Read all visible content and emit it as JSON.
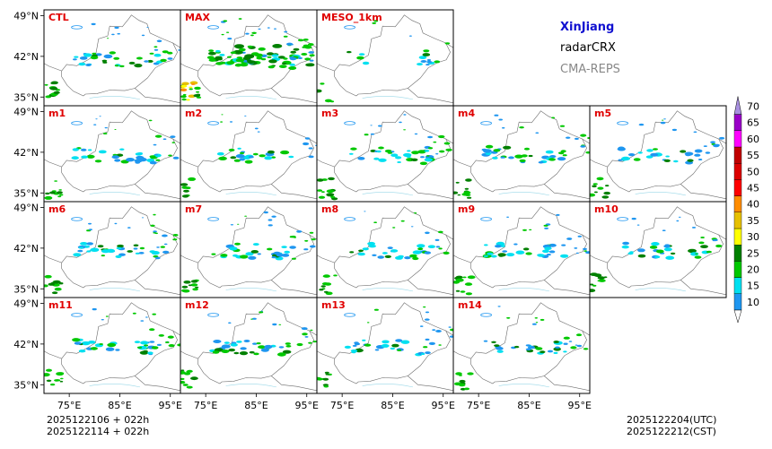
{
  "chart_data": {
    "type": "heatmap",
    "title": "XinJiang",
    "product": "radarCRX",
    "system": "CMA-REPS",
    "panels": [
      {
        "label": "CTL",
        "row": 0,
        "col": 0,
        "intensity": 1.0
      },
      {
        "label": "MAX",
        "row": 0,
        "col": 1,
        "intensity": 2.0
      },
      {
        "label": "MESO_1km",
        "row": 0,
        "col": 2,
        "intensity": 0.4
      },
      {
        "label": "m1",
        "row": 1,
        "col": 0,
        "intensity": 1.0
      },
      {
        "label": "m2",
        "row": 1,
        "col": 1,
        "intensity": 0.8
      },
      {
        "label": "m3",
        "row": 1,
        "col": 2,
        "intensity": 1.1
      },
      {
        "label": "m4",
        "row": 1,
        "col": 3,
        "intensity": 1.0
      },
      {
        "label": "m5",
        "row": 1,
        "col": 4,
        "intensity": 0.9
      },
      {
        "label": "m6",
        "row": 2,
        "col": 0,
        "intensity": 1.1
      },
      {
        "label": "m7",
        "row": 2,
        "col": 1,
        "intensity": 1.0
      },
      {
        "label": "m8",
        "row": 2,
        "col": 2,
        "intensity": 0.9
      },
      {
        "label": "m9",
        "row": 2,
        "col": 3,
        "intensity": 1.0
      },
      {
        "label": "m10",
        "row": 2,
        "col": 4,
        "intensity": 0.9
      },
      {
        "label": "m11",
        "row": 3,
        "col": 0,
        "intensity": 1.0
      },
      {
        "label": "m12",
        "row": 3,
        "col": 1,
        "intensity": 1.0
      },
      {
        "label": "m13",
        "row": 3,
        "col": 2,
        "intensity": 0.9
      },
      {
        "label": "m14",
        "row": 3,
        "col": 3,
        "intensity": 0.9
      }
    ],
    "x_ticks": [
      "75°E",
      "85°E",
      "95°E"
    ],
    "x_tick_values": [
      75,
      85,
      95
    ],
    "y_ticks": [
      "49°N",
      "42°N",
      "35°N"
    ],
    "y_tick_values": [
      49,
      42,
      35
    ],
    "xlim": [
      70,
      97
    ],
    "ylim": [
      33.5,
      50
    ],
    "colorbar": {
      "levels": [
        "10",
        "15",
        "20",
        "25",
        "30",
        "35",
        "40",
        "45",
        "50",
        "55",
        "60",
        "65",
        "70"
      ],
      "colors": [
        "#1e96f0",
        "#00e0f0",
        "#00c800",
        "#008000",
        "#ffff00",
        "#e6c000",
        "#ff8c00",
        "#ff0000",
        "#dc0000",
        "#c00000",
        "#ff00ff",
        "#9a00c8",
        "#a890e0"
      ]
    },
    "time_left": [
      "2025122106  +  022h",
      "2025122114  +  022h"
    ],
    "time_right": [
      "2025122204(UTC)",
      "2025122212(CST)"
    ]
  }
}
